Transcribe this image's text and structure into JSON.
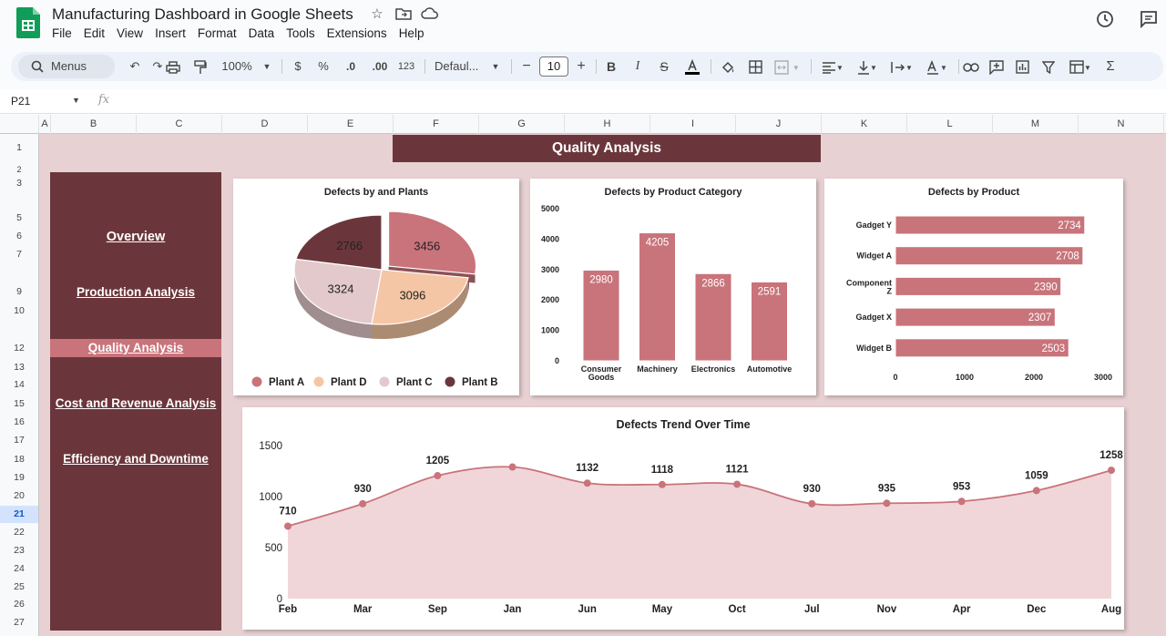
{
  "app": {
    "doc_title": "Manufacturing Dashboard in Google Sheets",
    "menu": [
      "File",
      "Edit",
      "View",
      "Insert",
      "Format",
      "Data",
      "Tools",
      "Extensions",
      "Help"
    ]
  },
  "toolbar": {
    "search_label": "Menus",
    "zoom": "100%",
    "currency": "$",
    "percent": "%",
    "dec_decrease": ".0",
    "dec_increase": ".00",
    "number_format": "123",
    "font": "Defaul...",
    "font_size": "10"
  },
  "formula_bar": {
    "cell_ref": "P21",
    "fx": "fx"
  },
  "columns": [
    "A",
    "B",
    "C",
    "D",
    "E",
    "F",
    "G",
    "H",
    "I",
    "J",
    "K",
    "L",
    "M",
    "N"
  ],
  "rows": [
    "1",
    "2",
    "3",
    "5",
    "6",
    "7",
    "9",
    "10",
    "12",
    "13",
    "14",
    "15",
    "16",
    "17",
    "18",
    "19",
    "20",
    "21",
    "22",
    "23",
    "24",
    "25",
    "26",
    "27"
  ],
  "selected_row": "21",
  "dashboard": {
    "banner": "Quality Analysis",
    "nav": [
      {
        "label": "Overview",
        "active": false
      },
      {
        "label": "Production Analysis",
        "active": false
      },
      {
        "label": "Quality Analysis",
        "active": true
      },
      {
        "label": "Cost and Revenue Analysis",
        "active": false
      },
      {
        "label": "Efficiency and Downtime",
        "active": false
      }
    ]
  },
  "colors": {
    "maroon": "#6b363b",
    "rose": "#c9737a",
    "peach": "#f5c6a5",
    "blush": "#e3c9cc",
    "sheet_bg": "#e8d1d3"
  },
  "chart_data": [
    {
      "type": "pie",
      "title": "Defects by and Plants",
      "labels": [
        "Plant A",
        "Plant D",
        "Plant C",
        "Plant B"
      ],
      "values": [
        3456,
        3096,
        3324,
        2766
      ],
      "colors": [
        "#c9737a",
        "#f5c6a5",
        "#e3c9cc",
        "#6b363b"
      ],
      "legend": "bottom"
    },
    {
      "type": "bar",
      "title": "Defects by Product Category",
      "categories": [
        "Consumer Goods",
        "Machinery",
        "Electronics",
        "Automotive"
      ],
      "values": [
        2980,
        4205,
        2866,
        2591
      ],
      "ylim": [
        0,
        5000
      ],
      "yticks": [
        0,
        1000,
        2000,
        3000,
        4000,
        5000
      ]
    },
    {
      "type": "bar",
      "orientation": "horizontal",
      "title": "Defects by Product",
      "categories": [
        "Gadget Y",
        "Widget A",
        "Component Z",
        "Gadget X",
        "Widget B"
      ],
      "values": [
        2734,
        2708,
        2390,
        2307,
        2503
      ],
      "xlim": [
        0,
        3000
      ],
      "xticks": [
        0,
        1000,
        2000,
        3000
      ]
    },
    {
      "type": "area",
      "title": "Defects Trend Over Time",
      "x": [
        "Feb",
        "Mar",
        "Sep",
        "Jan",
        "Jun",
        "May",
        "Oct",
        "Jul",
        "Nov",
        "Apr",
        "Dec",
        "Aug"
      ],
      "values": [
        710,
        930,
        1205,
        1290,
        1132,
        1118,
        1121,
        930,
        935,
        953,
        1059,
        1258
      ],
      "labels": [
        "710",
        "930",
        "1205",
        "",
        "1132",
        "1118",
        "1121",
        "930",
        "935",
        "953",
        "1059",
        "1258"
      ],
      "ylim": [
        0,
        1500
      ],
      "yticks": [
        0,
        500,
        1000,
        1500
      ]
    }
  ]
}
